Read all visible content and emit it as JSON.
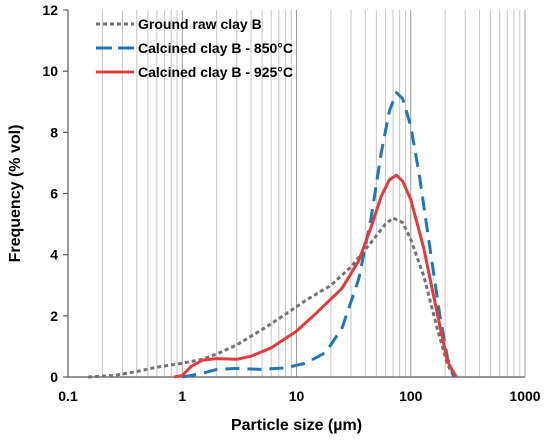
{
  "chart_data": {
    "type": "line",
    "xlabel": "Particle size (µm)",
    "ylabel": "Frequency (% vol)",
    "xscale": "log",
    "xlim": [
      0.1,
      1000
    ],
    "ylim": [
      0,
      12
    ],
    "x_ticks": [
      0.1,
      1,
      10,
      100,
      1000
    ],
    "x_tick_labels": [
      "0.1",
      "1",
      "10",
      "100",
      "1000"
    ],
    "y_ticks": [
      0,
      2,
      4,
      6,
      8,
      10,
      12
    ],
    "y_tick_labels": [
      "0",
      "2",
      "4",
      "6",
      "8",
      "10",
      "12"
    ],
    "grid": "vertical major and minor",
    "legend_position": "top-left",
    "series": [
      {
        "name": "Ground raw clay B",
        "color": "#767171",
        "dash": "dotted",
        "points": [
          [
            0.15,
            0
          ],
          [
            0.25,
            0.05
          ],
          [
            0.4,
            0.18
          ],
          [
            0.6,
            0.32
          ],
          [
            1,
            0.45
          ],
          [
            1.5,
            0.58
          ],
          [
            2,
            0.75
          ],
          [
            3,
            1.05
          ],
          [
            5,
            1.55
          ],
          [
            8,
            2.05
          ],
          [
            12,
            2.5
          ],
          [
            20,
            3.0
          ],
          [
            30,
            3.6
          ],
          [
            45,
            4.4
          ],
          [
            60,
            5.0
          ],
          [
            70,
            5.2
          ],
          [
            85,
            5.05
          ],
          [
            100,
            4.5
          ],
          [
            130,
            3.3
          ],
          [
            170,
            1.6
          ],
          [
            210,
            0.4
          ],
          [
            240,
            0
          ]
        ]
      },
      {
        "name": "Calcined clay B - 850°C",
        "color": "#1F77B4",
        "dash": "dashed",
        "points": [
          [
            1,
            0
          ],
          [
            1.5,
            0.12
          ],
          [
            2,
            0.25
          ],
          [
            3,
            0.28
          ],
          [
            5,
            0.25
          ],
          [
            8,
            0.3
          ],
          [
            12,
            0.45
          ],
          [
            18,
            0.8
          ],
          [
            25,
            1.6
          ],
          [
            35,
            3.2
          ],
          [
            45,
            5.2
          ],
          [
            55,
            7.3
          ],
          [
            65,
            8.7
          ],
          [
            75,
            9.3
          ],
          [
            85,
            9.1
          ],
          [
            100,
            8.2
          ],
          [
            120,
            6.5
          ],
          [
            150,
            4.0
          ],
          [
            180,
            2.0
          ],
          [
            210,
            0.6
          ],
          [
            240,
            0
          ]
        ]
      },
      {
        "name": "Calcined clay B - 925°C",
        "color": "#E03C3C",
        "dash": "solid",
        "points": [
          [
            0.85,
            0
          ],
          [
            1,
            0.05
          ],
          [
            1.2,
            0.35
          ],
          [
            1.5,
            0.55
          ],
          [
            2,
            0.6
          ],
          [
            3,
            0.58
          ],
          [
            4,
            0.68
          ],
          [
            6,
            0.95
          ],
          [
            10,
            1.5
          ],
          [
            15,
            2.1
          ],
          [
            25,
            2.9
          ],
          [
            35,
            3.8
          ],
          [
            45,
            4.9
          ],
          [
            55,
            5.9
          ],
          [
            65,
            6.45
          ],
          [
            75,
            6.6
          ],
          [
            85,
            6.4
          ],
          [
            100,
            5.8
          ],
          [
            130,
            4.2
          ],
          [
            170,
            2.1
          ],
          [
            210,
            0.5
          ],
          [
            250,
            0
          ]
        ]
      }
    ]
  }
}
